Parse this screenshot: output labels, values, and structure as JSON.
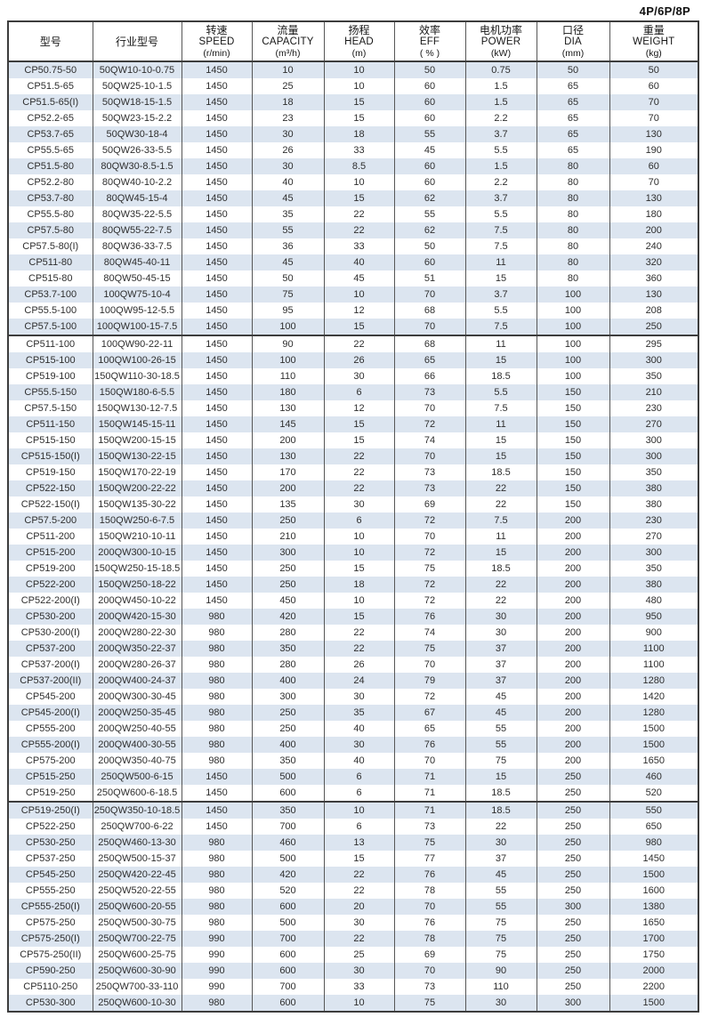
{
  "page": {
    "corner_label": "4P/6P/8P"
  },
  "colors": {
    "row_stripe": "#dce5f0",
    "border_dark": "#3d3d3d",
    "border_col": "#575757"
  },
  "table": {
    "columns": [
      {
        "cn": "型号",
        "en": "",
        "unit": ""
      },
      {
        "cn": "行业型号",
        "en": "",
        "unit": ""
      },
      {
        "cn": "转速",
        "en": "SPEED",
        "unit": "(r/min)"
      },
      {
        "cn": "流量",
        "en": "CAPACITY",
        "unit": "(m³/h)"
      },
      {
        "cn": "扬程",
        "en": "HEAD",
        "unit": "(m)"
      },
      {
        "cn": "效率",
        "en": "EFF",
        "unit": "( % )"
      },
      {
        "cn": "电机功率",
        "en": "POWER",
        "unit": "(kW)"
      },
      {
        "cn": "口径",
        "en": "DIA",
        "unit": "(mm)"
      },
      {
        "cn": "重量",
        "en": "WEIGHT",
        "unit": "(kg)"
      }
    ],
    "section_breaks_after_row": [
      17,
      46
    ],
    "rows": [
      [
        "CP50.75-50",
        "50QW10-10-0.75",
        "1450",
        "10",
        "10",
        "50",
        "0.75",
        "50",
        "50"
      ],
      [
        "CP51.5-65",
        "50QW25-10-1.5",
        "1450",
        "25",
        "10",
        "60",
        "1.5",
        "65",
        "60"
      ],
      [
        "CP51.5-65(I)",
        "50QW18-15-1.5",
        "1450",
        "18",
        "15",
        "60",
        "1.5",
        "65",
        "70"
      ],
      [
        "CP52.2-65",
        "50QW23-15-2.2",
        "1450",
        "23",
        "15",
        "60",
        "2.2",
        "65",
        "70"
      ],
      [
        "CP53.7-65",
        "50QW30-18-4",
        "1450",
        "30",
        "18",
        "55",
        "3.7",
        "65",
        "130"
      ],
      [
        "CP55.5-65",
        "50QW26-33-5.5",
        "1450",
        "26",
        "33",
        "45",
        "5.5",
        "65",
        "190"
      ],
      [
        "CP51.5-80",
        "80QW30-8.5-1.5",
        "1450",
        "30",
        "8.5",
        "60",
        "1.5",
        "80",
        "60"
      ],
      [
        "CP52.2-80",
        "80QW40-10-2.2",
        "1450",
        "40",
        "10",
        "60",
        "2.2",
        "80",
        "70"
      ],
      [
        "CP53.7-80",
        "80QW45-15-4",
        "1450",
        "45",
        "15",
        "62",
        "3.7",
        "80",
        "130"
      ],
      [
        "CP55.5-80",
        "80QW35-22-5.5",
        "1450",
        "35",
        "22",
        "55",
        "5.5",
        "80",
        "180"
      ],
      [
        "CP57.5-80",
        "80QW55-22-7.5",
        "1450",
        "55",
        "22",
        "62",
        "7.5",
        "80",
        "200"
      ],
      [
        "CP57.5-80(I)",
        "80QW36-33-7.5",
        "1450",
        "36",
        "33",
        "50",
        "7.5",
        "80",
        "240"
      ],
      [
        "CP511-80",
        "80QW45-40-11",
        "1450",
        "45",
        "40",
        "60",
        "11",
        "80",
        "320"
      ],
      [
        "CP515-80",
        "80QW50-45-15",
        "1450",
        "50",
        "45",
        "51",
        "15",
        "80",
        "360"
      ],
      [
        "CP53.7-100",
        "100QW75-10-4",
        "1450",
        "75",
        "10",
        "70",
        "3.7",
        "100",
        "130"
      ],
      [
        "CP55.5-100",
        "100QW95-12-5.5",
        "1450",
        "95",
        "12",
        "68",
        "5.5",
        "100",
        "208"
      ],
      [
        "CP57.5-100",
        "100QW100-15-7.5",
        "1450",
        "100",
        "15",
        "70",
        "7.5",
        "100",
        "250"
      ],
      [
        "CP511-100",
        "100QW90-22-11",
        "1450",
        "90",
        "22",
        "68",
        "11",
        "100",
        "295"
      ],
      [
        "CP515-100",
        "100QW100-26-15",
        "1450",
        "100",
        "26",
        "65",
        "15",
        "100",
        "300"
      ],
      [
        "CP519-100",
        "150QW110-30-18.5",
        "1450",
        "110",
        "30",
        "66",
        "18.5",
        "100",
        "350"
      ],
      [
        "CP55.5-150",
        "150QW180-6-5.5",
        "1450",
        "180",
        "6",
        "73",
        "5.5",
        "150",
        "210"
      ],
      [
        "CP57.5-150",
        "150QW130-12-7.5",
        "1450",
        "130",
        "12",
        "70",
        "7.5",
        "150",
        "230"
      ],
      [
        "CP511-150",
        "150QW145-15-11",
        "1450",
        "145",
        "15",
        "72",
        "11",
        "150",
        "270"
      ],
      [
        "CP515-150",
        "150QW200-15-15",
        "1450",
        "200",
        "15",
        "74",
        "15",
        "150",
        "300"
      ],
      [
        "CP515-150(I)",
        "150QW130-22-15",
        "1450",
        "130",
        "22",
        "70",
        "15",
        "150",
        "300"
      ],
      [
        "CP519-150",
        "150QW170-22-19",
        "1450",
        "170",
        "22",
        "73",
        "18.5",
        "150",
        "350"
      ],
      [
        "CP522-150",
        "150QW200-22-22",
        "1450",
        "200",
        "22",
        "73",
        "22",
        "150",
        "380"
      ],
      [
        "CP522-150(I)",
        "150QW135-30-22",
        "1450",
        "135",
        "30",
        "69",
        "22",
        "150",
        "380"
      ],
      [
        "CP57.5-200",
        "150QW250-6-7.5",
        "1450",
        "250",
        "6",
        "72",
        "7.5",
        "200",
        "230"
      ],
      [
        "CP511-200",
        "150QW210-10-11",
        "1450",
        "210",
        "10",
        "70",
        "11",
        "200",
        "270"
      ],
      [
        "CP515-200",
        "200QW300-10-15",
        "1450",
        "300",
        "10",
        "72",
        "15",
        "200",
        "300"
      ],
      [
        "CP519-200",
        "150QW250-15-18.5",
        "1450",
        "250",
        "15",
        "75",
        "18.5",
        "200",
        "350"
      ],
      [
        "CP522-200",
        "150QW250-18-22",
        "1450",
        "250",
        "18",
        "72",
        "22",
        "200",
        "380"
      ],
      [
        "CP522-200(I)",
        "200QW450-10-22",
        "1450",
        "450",
        "10",
        "72",
        "22",
        "200",
        "480"
      ],
      [
        "CP530-200",
        "200QW420-15-30",
        "980",
        "420",
        "15",
        "76",
        "30",
        "200",
        "950"
      ],
      [
        "CP530-200(I)",
        "200QW280-22-30",
        "980",
        "280",
        "22",
        "74",
        "30",
        "200",
        "900"
      ],
      [
        "CP537-200",
        "200QW350-22-37",
        "980",
        "350",
        "22",
        "75",
        "37",
        "200",
        "1100"
      ],
      [
        "CP537-200(I)",
        "200QW280-26-37",
        "980",
        "280",
        "26",
        "70",
        "37",
        "200",
        "1100"
      ],
      [
        "CP537-200(II)",
        "200QW400-24-37",
        "980",
        "400",
        "24",
        "79",
        "37",
        "200",
        "1280"
      ],
      [
        "CP545-200",
        "200QW300-30-45",
        "980",
        "300",
        "30",
        "72",
        "45",
        "200",
        "1420"
      ],
      [
        "CP545-200(I)",
        "200QW250-35-45",
        "980",
        "250",
        "35",
        "67",
        "45",
        "200",
        "1280"
      ],
      [
        "CP555-200",
        "200QW250-40-55",
        "980",
        "250",
        "40",
        "65",
        "55",
        "200",
        "1500"
      ],
      [
        "CP555-200(I)",
        "200QW400-30-55",
        "980",
        "400",
        "30",
        "76",
        "55",
        "200",
        "1500"
      ],
      [
        "CP575-200",
        "200QW350-40-75",
        "980",
        "350",
        "40",
        "70",
        "75",
        "200",
        "1650"
      ],
      [
        "CP515-250",
        "250QW500-6-15",
        "1450",
        "500",
        "6",
        "71",
        "15",
        "250",
        "460"
      ],
      [
        "CP519-250",
        "250QW600-6-18.5",
        "1450",
        "600",
        "6",
        "71",
        "18.5",
        "250",
        "520"
      ],
      [
        "CP519-250(I)",
        "250QW350-10-18.5",
        "1450",
        "350",
        "10",
        "71",
        "18.5",
        "250",
        "550"
      ],
      [
        "CP522-250",
        "250QW700-6-22",
        "1450",
        "700",
        "6",
        "73",
        "22",
        "250",
        "650"
      ],
      [
        "CP530-250",
        "250QW460-13-30",
        "980",
        "460",
        "13",
        "75",
        "30",
        "250",
        "980"
      ],
      [
        "CP537-250",
        "250QW500-15-37",
        "980",
        "500",
        "15",
        "77",
        "37",
        "250",
        "1450"
      ],
      [
        "CP545-250",
        "250QW420-22-45",
        "980",
        "420",
        "22",
        "76",
        "45",
        "250",
        "1500"
      ],
      [
        "CP555-250",
        "250QW520-22-55",
        "980",
        "520",
        "22",
        "78",
        "55",
        "250",
        "1600"
      ],
      [
        "CP555-250(I)",
        "250QW600-20-55",
        "980",
        "600",
        "20",
        "70",
        "55",
        "300",
        "1380"
      ],
      [
        "CP575-250",
        "250QW500-30-75",
        "980",
        "500",
        "30",
        "76",
        "75",
        "250",
        "1650"
      ],
      [
        "CP575-250(I)",
        "250QW700-22-75",
        "990",
        "700",
        "22",
        "78",
        "75",
        "250",
        "1700"
      ],
      [
        "CP575-250(II)",
        "250QW600-25-75",
        "990",
        "600",
        "25",
        "69",
        "75",
        "250",
        "1750"
      ],
      [
        "CP590-250",
        "250QW600-30-90",
        "990",
        "600",
        "30",
        "70",
        "90",
        "250",
        "2000"
      ],
      [
        "CP5110-250",
        "250QW700-33-110",
        "990",
        "700",
        "33",
        "73",
        "110",
        "250",
        "2200"
      ],
      [
        "CP530-300",
        "250QW600-10-30",
        "980",
        "600",
        "10",
        "75",
        "30",
        "300",
        "1500"
      ]
    ]
  }
}
